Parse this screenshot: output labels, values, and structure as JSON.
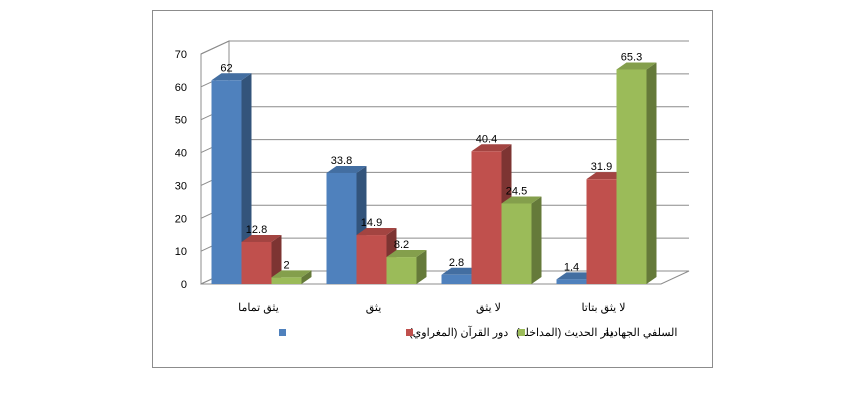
{
  "chart_data": {
    "type": "bar",
    "title": "",
    "xlabel": "",
    "ylabel": "",
    "ylim": [
      0,
      70
    ],
    "yticks": [
      "0",
      "10",
      "20",
      "30",
      "40",
      "50",
      "60",
      "70"
    ],
    "grid": true,
    "legend_position": "bottom",
    "categories": [
      "يثق تماما",
      "يثق",
      "لا يثق",
      "لا يثق بتاتا"
    ],
    "series": [
      {
        "name": "دور القرآن (المغراوي)",
        "color": "#4f81bd",
        "values": [
          62,
          33.8,
          2.8,
          1.4
        ],
        "labels": [
          "62",
          "33.8",
          "2.8",
          "1.4"
        ]
      },
      {
        "name": "دار الحديث (المداخلة)",
        "color": "#c0504d",
        "values": [
          12.8,
          14.9,
          40.4,
          31.9
        ],
        "labels": [
          "12.8",
          "14.9",
          "40.4",
          "31.9"
        ]
      },
      {
        "name": "السلفي الجهادية",
        "color": "#9bbb59",
        "values": [
          2,
          8.2,
          24.5,
          65.3
        ],
        "labels": [
          "2",
          "8.2",
          "24.5",
          "65.3"
        ]
      }
    ]
  }
}
